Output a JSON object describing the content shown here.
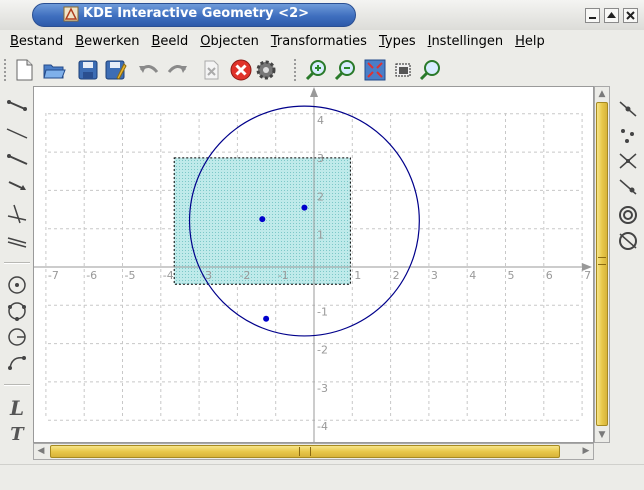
{
  "window": {
    "title": "KDE Interactive Geometry <2>",
    "title_color": "#3f6fbf"
  },
  "menubar": {
    "items": [
      {
        "underline": "B",
        "rest": "estand"
      },
      {
        "underline": "B",
        "rest": "ewerken"
      },
      {
        "underline": "B",
        "rest": "eeld"
      },
      {
        "underline": "O",
        "rest": "bjecten"
      },
      {
        "underline": "T",
        "rest": "ransformaties"
      },
      {
        "underline": "T",
        "rest": "ypes"
      },
      {
        "underline": "I",
        "rest": "nstellingen"
      },
      {
        "underline": "H",
        "rest": "elp"
      }
    ]
  },
  "toolbar": {
    "icons": [
      "new-document-icon",
      "open-folder-icon",
      "save-icon",
      "save-as-icon",
      "undo-icon",
      "redo-icon",
      "delete-icon",
      "cancel-construction-icon",
      "settings-icon",
      "zoom-in-icon",
      "zoom-out-icon",
      "zoom-fit-icon",
      "zoom-rect-icon",
      "zoom-custom-icon"
    ]
  },
  "left_tools": [
    "segment-icon",
    "line-icon",
    "ray-icon",
    "vector-icon",
    "perpendicular-icon",
    "parallel-icon",
    "circle-center-point-icon",
    "circle-three-points-icon",
    "circle-radius-icon",
    "arc-icon",
    "locus-icon",
    "text-label-icon"
  ],
  "right_tools": [
    "midpoint-icon",
    "point-icon",
    "intersection-icon",
    "constrained-point-icon",
    "transform-icon",
    "conic-icon"
  ],
  "geometry": {
    "x_ticks": [
      "-7",
      "-6",
      "-5",
      "-4",
      "-3",
      "-2",
      "-1",
      "1",
      "2",
      "3",
      "4",
      "5",
      "6",
      "7"
    ],
    "y_ticks": [
      "4",
      "3",
      "2",
      "1",
      "-1",
      "-2",
      "-3",
      "-4"
    ],
    "circle_color": "#00008b",
    "point_color": "#0000cc",
    "rectangle_fill": "#bfeaea"
  },
  "left_text_tools": {
    "label_L": "L",
    "label_T": "T"
  }
}
